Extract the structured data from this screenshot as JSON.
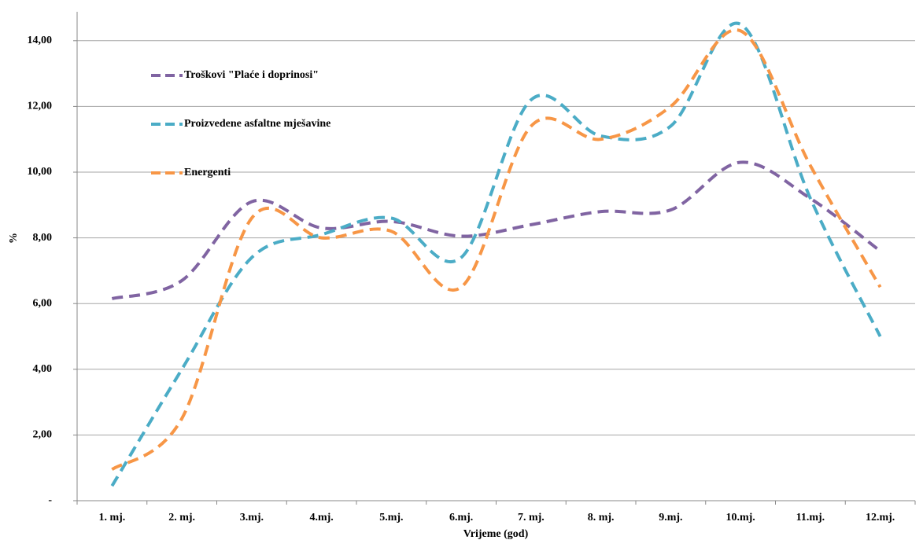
{
  "chart_data": {
    "type": "line",
    "categories": [
      "1. mj.",
      "2. mj.",
      "3.mj.",
      "4.mj.",
      "5.mj.",
      "6.mj.",
      "7. mj.",
      "8. mj.",
      "9.mj.",
      "10.mj.",
      "11.mj.",
      "12.mj."
    ],
    "series": [
      {
        "name": "Troškovi \"Plaće i doprinosi\"",
        "color": "#8064a2",
        "values": [
          6.15,
          6.7,
          9.1,
          8.3,
          8.5,
          8.05,
          8.4,
          8.8,
          8.85,
          10.3,
          9.2,
          7.6
        ]
      },
      {
        "name": "Proizvedene asfaltne mješavine",
        "color": "#4bacc6",
        "values": [
          0.45,
          4.0,
          7.4,
          8.1,
          8.6,
          7.4,
          12.2,
          11.1,
          11.4,
          14.5,
          9.2,
          5.0
        ]
      },
      {
        "name": "Energenti",
        "color": "#f79646",
        "values": [
          0.95,
          2.5,
          8.6,
          8.0,
          8.2,
          6.5,
          11.4,
          11.0,
          12.0,
          14.3,
          10.2,
          6.5
        ]
      }
    ],
    "ylabel": "%",
    "xlabel": "Vrijeme (god)",
    "ylim": [
      0,
      15
    ],
    "yticks": [
      {
        "value": 0,
        "label": "-"
      },
      {
        "value": 2,
        "label": "2,00"
      },
      {
        "value": 4,
        "label": "4,00"
      },
      {
        "value": 6,
        "label": "6,00"
      },
      {
        "value": 8,
        "label": "8,00"
      },
      {
        "value": 10,
        "label": "10,00"
      },
      {
        "value": 12,
        "label": "12,00"
      },
      {
        "value": 14,
        "label": "14,00"
      }
    ],
    "grid": true,
    "legend": "top-left"
  }
}
